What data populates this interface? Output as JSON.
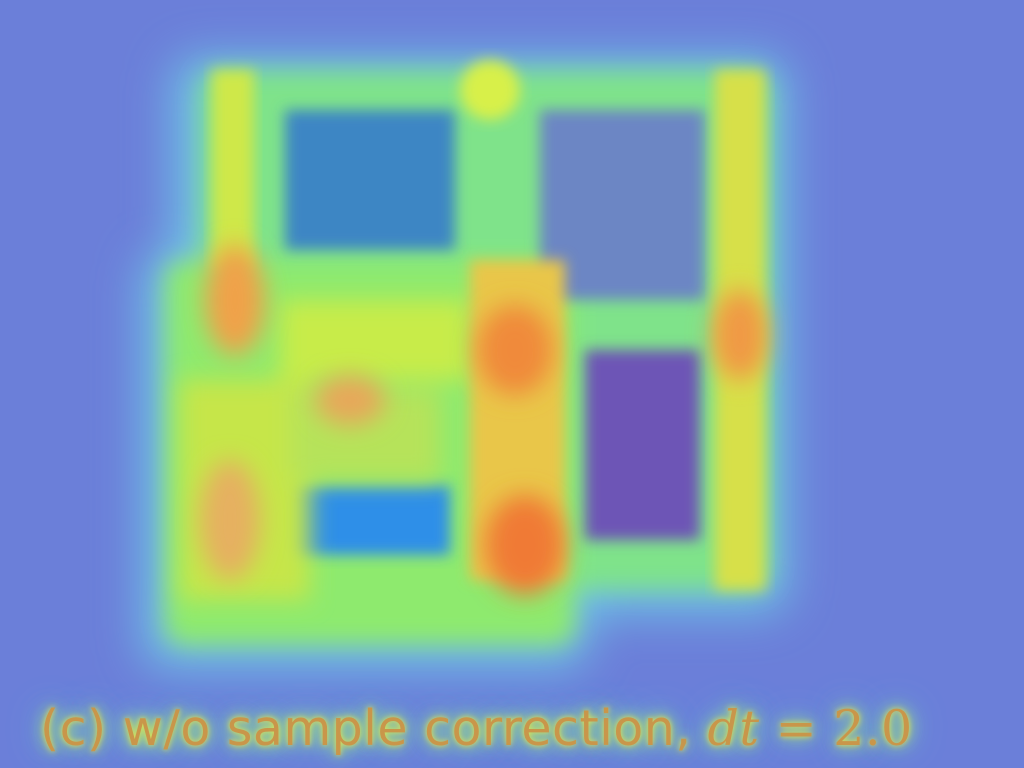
{
  "caption": {
    "label": "(c) w/o sample correction,",
    "var": "dt",
    "equals": "=",
    "value": "2.0"
  },
  "colors": {
    "background": "#6b7fd9",
    "caption_text": "#c9964a",
    "heat_low": "#3d8bc8",
    "heat_mid": "#b8ee4a",
    "heat_high": "#f07a35",
    "dark_region": "#6e55b8"
  }
}
